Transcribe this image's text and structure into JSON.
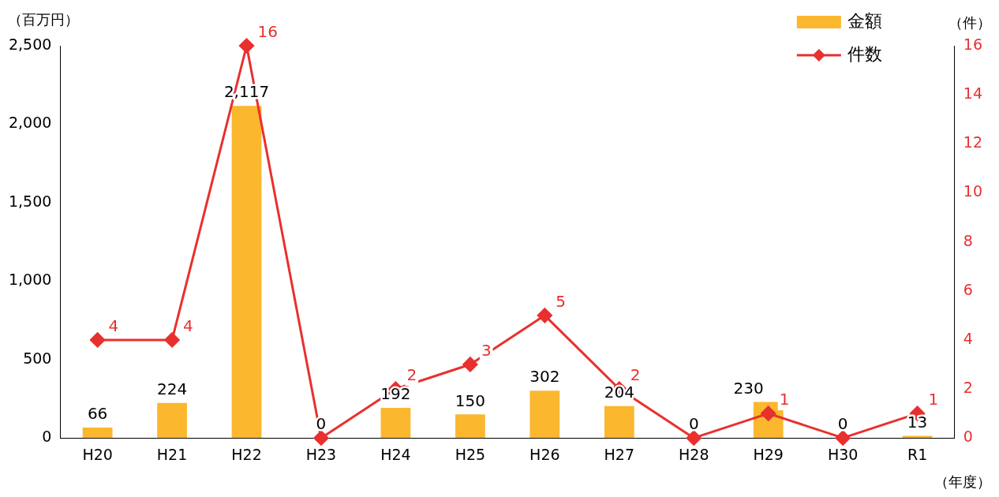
{
  "chart_data": {
    "type": "bar",
    "categories": [
      "H20",
      "H21",
      "H22",
      "H23",
      "H24",
      "H25",
      "H26",
      "H27",
      "H28",
      "H29",
      "H30",
      "R1"
    ],
    "series": [
      {
        "name": "金額",
        "color": "#fbb72e",
        "values": [
          66,
          224,
          2117,
          0,
          192,
          150,
          302,
          204,
          0,
          230,
          0,
          13
        ],
        "value_labels": [
          "66",
          "224",
          "2,117",
          "0",
          "192",
          "150",
          "302",
          "204",
          "0",
          "230",
          "0",
          "13"
        ]
      },
      {
        "name": "件数",
        "type": "line",
        "axis": "y2",
        "color": "#e8302f",
        "values": [
          4,
          4,
          16,
          0,
          2,
          3,
          5,
          2,
          0,
          1,
          0,
          1
        ],
        "value_labels": [
          "4",
          "4",
          "16",
          null,
          "2",
          "3",
          "5",
          "2",
          null,
          "1",
          null,
          "1"
        ]
      }
    ],
    "ylabel": "（百万円）",
    "y2label": "（件）",
    "xlabel": "（年度）",
    "ylim": [
      0,
      2500
    ],
    "yticks": [
      0,
      {
        "value": 500,
        "label": "500"
      },
      {
        "value": 1000,
        "label": "1,000"
      },
      {
        "value": 1500,
        "label": "1,500"
      },
      {
        "value": 2000,
        "label": "2,000"
      },
      {
        "value": 2500,
        "label": "2,500"
      }
    ],
    "y2lim": [
      0,
      16
    ],
    "y2ticks": [
      0,
      2,
      4,
      6,
      8,
      10,
      12,
      14,
      16
    ],
    "grid": false,
    "legend": "top right",
    "marker": "diamond",
    "line_style": "solid"
  }
}
